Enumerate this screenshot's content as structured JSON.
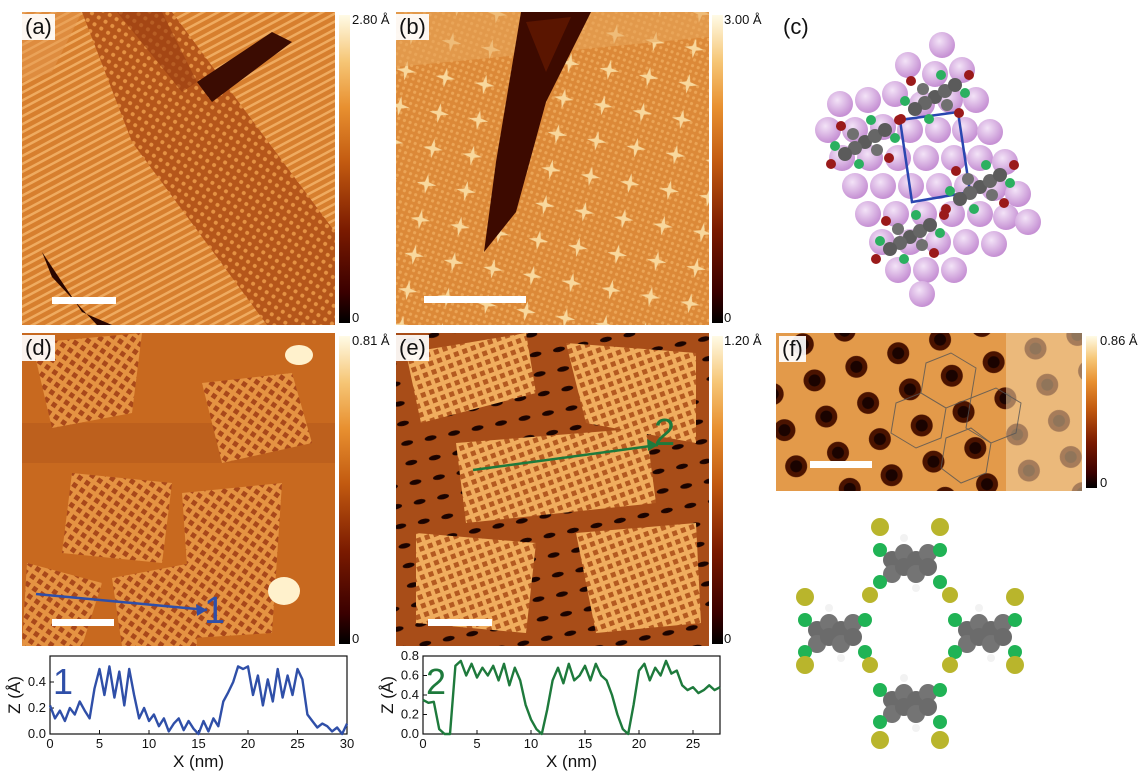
{
  "panels": {
    "a": {
      "label": "(a)",
      "colorbar_max": "2.80 Å",
      "colorbar_min": "0"
    },
    "b": {
      "label": "(b)",
      "colorbar_max": "3.00 Å",
      "colorbar_min": "0"
    },
    "c": {
      "label": "(c)"
    },
    "d": {
      "label": "(d)",
      "colorbar_max": "0.81 Å",
      "colorbar_min": "0",
      "line_marker": "1"
    },
    "e": {
      "label": "(e)",
      "colorbar_max": "1.20 Å",
      "colorbar_min": "0",
      "line_marker": "2"
    },
    "f": {
      "label": "(f)",
      "colorbar_max": "0.86 Å",
      "colorbar_min": "0"
    }
  },
  "chart_data": [
    {
      "type": "line",
      "panel": "profile-1",
      "marker": "1",
      "xlabel": "X (nm)",
      "ylabel": "Z (Å)",
      "xlim": [
        0,
        30
      ],
      "ylim": [
        0,
        0.6
      ],
      "xticks": [
        "0",
        "5",
        "10",
        "15",
        "20",
        "25",
        "30"
      ],
      "yticks": [
        "0.0",
        "0.2",
        "0.4"
      ],
      "color": "#2f4fa8",
      "x": [
        0,
        0.5,
        1,
        1.5,
        2,
        2.5,
        3,
        3.5,
        4,
        4.5,
        5,
        5.5,
        6,
        6.5,
        7,
        7.5,
        8,
        8.5,
        9,
        9.5,
        10,
        10.5,
        11,
        11.5,
        12,
        12.5,
        13,
        13.5,
        14,
        14.5,
        15,
        15.5,
        16,
        16.5,
        17,
        17.5,
        18,
        18.5,
        19,
        19.5,
        20,
        20.5,
        21,
        21.5,
        22,
        22.5,
        23,
        23.5,
        24,
        24.5,
        25,
        25.5,
        26,
        26.5,
        27,
        27.5,
        28,
        28.5,
        29,
        29.5,
        30
      ],
      "y": [
        0.22,
        0.12,
        0.18,
        0.1,
        0.2,
        0.15,
        0.25,
        0.18,
        0.12,
        0.35,
        0.5,
        0.3,
        0.52,
        0.28,
        0.48,
        0.22,
        0.5,
        0.3,
        0.12,
        0.2,
        0.1,
        0.15,
        0.06,
        0.12,
        0.02,
        0.08,
        0.12,
        0.03,
        0.1,
        0.04,
        0.0,
        0.1,
        0.02,
        0.12,
        0.06,
        0.25,
        0.32,
        0.4,
        0.52,
        0.5,
        0.52,
        0.3,
        0.45,
        0.22,
        0.42,
        0.25,
        0.5,
        0.28,
        0.45,
        0.3,
        0.5,
        0.42,
        0.15,
        0.1,
        0.05,
        0.08,
        0.06,
        0.02,
        0.05,
        0.0,
        0.08
      ]
    },
    {
      "type": "line",
      "panel": "profile-2",
      "marker": "2",
      "xlabel": "X (nm)",
      "ylabel": "Z (Å)",
      "xlim": [
        0,
        27.5
      ],
      "ylim": [
        0,
        0.8
      ],
      "xticks": [
        "0",
        "5",
        "10",
        "15",
        "20",
        "25"
      ],
      "yticks": [
        "0.0",
        "0.2",
        "0.4",
        "0.6",
        "0.8"
      ],
      "color": "#1e7a3c",
      "x": [
        0,
        0.5,
        1,
        1.5,
        2,
        2.5,
        3,
        3.5,
        4,
        4.5,
        5,
        5.5,
        6,
        6.5,
        7,
        7.5,
        8,
        8.5,
        9,
        9.5,
        10,
        10.5,
        11,
        11.5,
        12,
        12.5,
        13,
        13.5,
        14,
        14.5,
        15,
        15.5,
        16,
        16.5,
        17,
        17.5,
        18,
        18.5,
        19,
        19.5,
        20,
        20.5,
        21,
        21.5,
        22,
        22.5,
        23,
        23.5,
        24,
        24.5,
        25,
        25.5,
        26,
        26.5,
        27,
        27.5
      ],
      "y": [
        0.35,
        0.32,
        0.33,
        0.05,
        0.0,
        0.0,
        0.7,
        0.75,
        0.6,
        0.72,
        0.58,
        0.68,
        0.6,
        0.7,
        0.55,
        0.72,
        0.5,
        0.68,
        0.55,
        0.3,
        0.15,
        0.05,
        0.0,
        0.25,
        0.55,
        0.68,
        0.52,
        0.72,
        0.55,
        0.6,
        0.7,
        0.55,
        0.72,
        0.6,
        0.55,
        0.4,
        0.2,
        0.05,
        0.0,
        0.3,
        0.65,
        0.72,
        0.55,
        0.68,
        0.6,
        0.75,
        0.62,
        0.65,
        0.5,
        0.45,
        0.48,
        0.42,
        0.45,
        0.5,
        0.45,
        0.48
      ]
    }
  ]
}
